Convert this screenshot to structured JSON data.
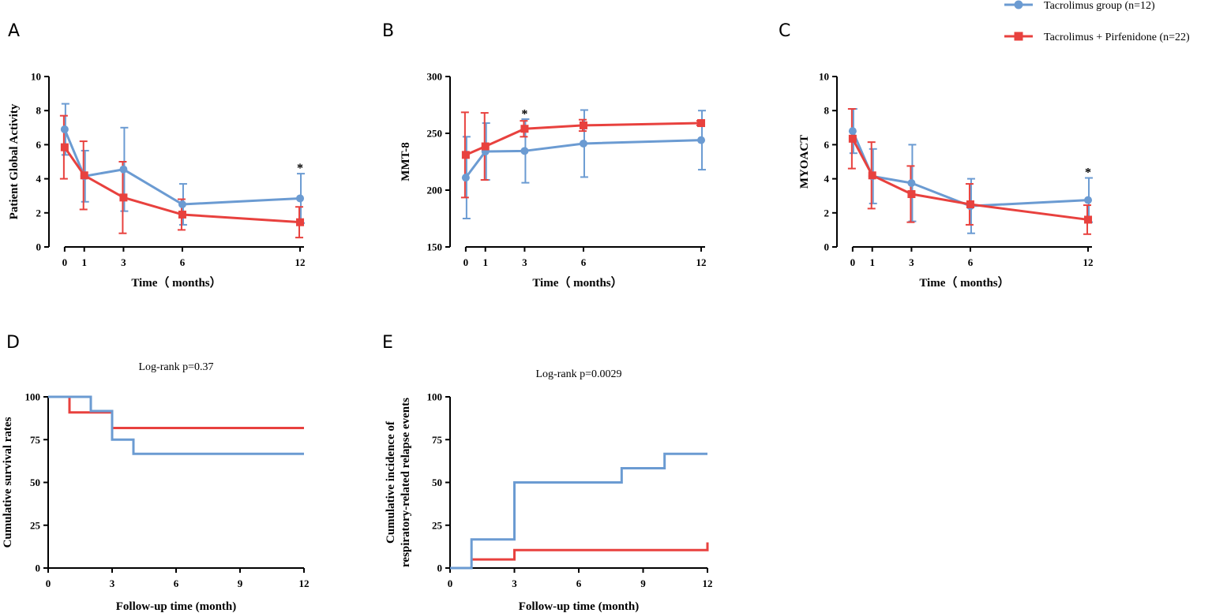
{
  "colors": {
    "blue": "#6b9bd2",
    "red": "#e8413e",
    "axis": "#000000"
  },
  "legend": {
    "items": [
      {
        "label": "Tacrolimus group (n=12)",
        "color": "#6b9bd2",
        "marker": "circle"
      },
      {
        "label": "Tacrolimus + Pirfenidone (n=22)",
        "color": "#e8413e",
        "marker": "square"
      }
    ]
  },
  "chart_data": [
    {
      "panel": "A",
      "type": "line",
      "ylabel": "Patient Global Activity",
      "xlabel": "Time（ months）",
      "x": [
        0,
        1,
        3,
        6,
        12
      ],
      "xticks": [
        0,
        1,
        3,
        6,
        12
      ],
      "xlim": [
        -0.8,
        12.2
      ],
      "ylim": [
        0,
        10
      ],
      "yticks": [
        0,
        2,
        4,
        6,
        8,
        10
      ],
      "series": [
        {
          "name": "Tacrolimus group (n=12)",
          "color": "#6b9bd2",
          "marker": "circle",
          "values": [
            6.9,
            4.15,
            4.55,
            2.5,
            2.85
          ],
          "err": [
            1.5,
            1.5,
            2.45,
            1.2,
            1.45
          ]
        },
        {
          "name": "Tacrolimus + Pirfenidone (n=22)",
          "color": "#e8413e",
          "marker": "square",
          "values": [
            5.85,
            4.2,
            2.9,
            1.9,
            1.45
          ],
          "err": [
            1.85,
            2.0,
            2.1,
            0.9,
            0.9
          ]
        }
      ],
      "annotations": [
        {
          "x": 12,
          "y": 4.35,
          "text": "*"
        }
      ]
    },
    {
      "panel": "B",
      "type": "line",
      "ylabel": "MMT-8",
      "xlabel": "Time（ months）",
      "x": [
        0,
        1,
        3,
        6,
        12
      ],
      "xticks": [
        0,
        1,
        3,
        6,
        12
      ],
      "xlim": [
        -0.8,
        12.2
      ],
      "ylim": [
        150,
        300
      ],
      "yticks": [
        150,
        200,
        250,
        300
      ],
      "series": [
        {
          "name": "Tacrolimus group (n=12)",
          "color": "#6b9bd2",
          "marker": "circle",
          "values": [
            211,
            234,
            234.5,
            241,
            244
          ],
          "err": [
            36,
            25,
            28,
            29.5,
            26
          ]
        },
        {
          "name": "Tacrolimus + Pirfenidone (n=22)",
          "color": "#e8413e",
          "marker": "square",
          "values": [
            231,
            238.5,
            254,
            257,
            259
          ],
          "err": [
            37.5,
            29.5,
            7,
            5,
            2
          ]
        }
      ],
      "annotations": [
        {
          "x": 3,
          "y": 263,
          "text": "*"
        }
      ]
    },
    {
      "panel": "C",
      "type": "line",
      "ylabel": "MYOACT",
      "xlabel": "Time（ months）",
      "x": [
        0,
        1,
        3,
        6,
        12
      ],
      "xticks": [
        0,
        1,
        3,
        6,
        12
      ],
      "xlim": [
        -0.8,
        12.2
      ],
      "ylim": [
        0,
        10
      ],
      "yticks": [
        0,
        2,
        4,
        6,
        8,
        10
      ],
      "series": [
        {
          "name": "Tacrolimus group (n=12)",
          "color": "#6b9bd2",
          "marker": "circle",
          "values": [
            6.8,
            4.15,
            3.75,
            2.4,
            2.75
          ],
          "err": [
            1.3,
            1.6,
            2.25,
            1.6,
            1.3
          ]
        },
        {
          "name": "Tacrolimus + Pirfenidone (n=22)",
          "color": "#e8413e",
          "marker": "square",
          "values": [
            6.35,
            4.2,
            3.1,
            2.5,
            1.6
          ],
          "err": [
            1.75,
            1.95,
            1.65,
            1.2,
            0.85
          ]
        }
      ],
      "annotations": [
        {
          "x": 12,
          "y": 4.1,
          "text": "*"
        }
      ]
    },
    {
      "panel": "D",
      "type": "line",
      "subtype": "step",
      "title": "Log-rank p=0.37",
      "ylabel": "Cumulative survival rates",
      "xlabel": "Follow-up time (month)",
      "xlim": [
        0,
        12
      ],
      "xticks": [
        0,
        3,
        6,
        9,
        12
      ],
      "ylim": [
        0,
        100
      ],
      "yticks": [
        0,
        25,
        50,
        75,
        100
      ],
      "series": [
        {
          "name": "Tacrolimus group (n=12)",
          "color": "#6b9bd2",
          "x": [
            0,
            2,
            3,
            4,
            12
          ],
          "values": [
            100,
            91.7,
            75,
            66.7,
            66.7
          ]
        },
        {
          "name": "Tacrolimus + Pirfenidone (n=22)",
          "color": "#e8413e",
          "x": [
            0,
            1,
            3,
            12
          ],
          "values": [
            100,
            90.9,
            81.8,
            81.8
          ]
        }
      ]
    },
    {
      "panel": "E",
      "type": "line",
      "subtype": "step",
      "title": "Log-rank p=0.0029",
      "ylabel": "Cumulative incidence of respiratory-related relapse events",
      "ylabel_lines": [
        "Cumulative incidence of",
        "respiratory-related relapse events"
      ],
      "xlabel": "Follow-up time (month)",
      "xlim": [
        0,
        12
      ],
      "xticks": [
        0,
        3,
        6,
        9,
        12
      ],
      "ylim": [
        0,
        100
      ],
      "yticks": [
        0,
        25,
        50,
        75,
        100
      ],
      "series": [
        {
          "name": "Tacrolimus group (n=12)",
          "color": "#6b9bd2",
          "x": [
            0,
            1,
            3,
            8,
            10,
            12
          ],
          "values": [
            0,
            16.7,
            50,
            58.3,
            66.7,
            66.7
          ]
        },
        {
          "name": "Tacrolimus + Pirfenidone (n=22)",
          "color": "#e8413e",
          "x": [
            1,
            3,
            12
          ],
          "values": [
            5,
            10.5,
            15
          ]
        }
      ]
    }
  ]
}
